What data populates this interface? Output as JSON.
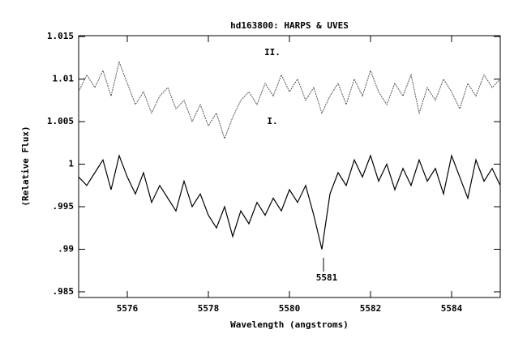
{
  "chart_data": {
    "type": "line",
    "title": "hd163800: HARPS & UVES",
    "x_label": "Wavelength (angstroms)",
    "y_label": "(Relative Flux)",
    "x": [
      5574.8,
      5575.0,
      5575.2,
      5575.4,
      5575.6,
      5575.8,
      5576.0,
      5576.2,
      5576.4,
      5576.6,
      5576.8,
      5577.0,
      5577.2,
      5577.4,
      5577.6,
      5577.8,
      5578.0,
      5578.2,
      5578.4,
      5578.6,
      5578.8,
      5579.0,
      5579.2,
      5579.4,
      5579.6,
      5579.8,
      5580.0,
      5580.2,
      5580.4,
      5580.6,
      5580.8,
      5581.0,
      5581.2,
      5581.4,
      5581.6,
      5581.8,
      5582.0,
      5582.2,
      5582.4,
      5582.6,
      5582.8,
      5583.0,
      5583.2,
      5583.4,
      5583.6,
      5583.8,
      5584.0,
      5584.2,
      5584.4,
      5584.6,
      5584.8,
      5585.0,
      5585.2
    ],
    "series": [
      {
        "name": "II.",
        "color": "#555555",
        "dashed": true,
        "values": [
          1.0085,
          1.0105,
          1.009,
          1.011,
          1.008,
          1.012,
          1.0095,
          1.007,
          1.0085,
          1.006,
          1.008,
          1.009,
          1.0065,
          1.0075,
          1.005,
          1.007,
          1.0045,
          1.006,
          1.003,
          1.0055,
          1.0075,
          1.0085,
          1.007,
          1.0095,
          1.008,
          1.0105,
          1.0085,
          1.01,
          1.0075,
          1.009,
          1.006,
          1.008,
          1.0095,
          1.007,
          1.01,
          1.008,
          1.011,
          1.0085,
          1.007,
          1.0095,
          1.008,
          1.0105,
          1.006,
          1.009,
          1.0075,
          1.01,
          1.0085,
          1.0065,
          1.0095,
          1.008,
          1.0105,
          1.009,
          1.01
        ]
      },
      {
        "name": "I.",
        "color": "#000000",
        "dashed": false,
        "values": [
          0.9985,
          0.9975,
          0.999,
          1.0005,
          0.997,
          1.001,
          0.9985,
          0.9965,
          0.999,
          0.9955,
          0.9975,
          0.996,
          0.9945,
          0.998,
          0.995,
          0.9965,
          0.994,
          0.9925,
          0.995,
          0.9915,
          0.9945,
          0.993,
          0.9955,
          0.994,
          0.996,
          0.9945,
          0.997,
          0.9955,
          0.9975,
          0.994,
          0.99,
          0.9965,
          0.999,
          0.9975,
          1.0005,
          0.9985,
          1.001,
          0.998,
          1.0,
          0.997,
          0.9995,
          0.9975,
          1.0005,
          0.998,
          0.9995,
          0.9965,
          1.001,
          0.9985,
          0.996,
          1.0005,
          0.998,
          0.9995,
          0.9975
        ]
      }
    ],
    "annotations": [
      "5581"
    ],
    "xlim": [
      5574.8,
      5585.2
    ],
    "ylim": [
      0.98433,
      1.0151
    ],
    "xticks": [
      5576,
      5578,
      5580,
      5582,
      5584
    ],
    "yticks": [
      1.015,
      1.01,
      1.005,
      1,
      {
        "value": 0.995,
        "label": ".995"
      },
      {
        "value": 0.99,
        "label": ".99"
      },
      {
        "value": 0.985,
        "label": ".985"
      }
    ]
  }
}
